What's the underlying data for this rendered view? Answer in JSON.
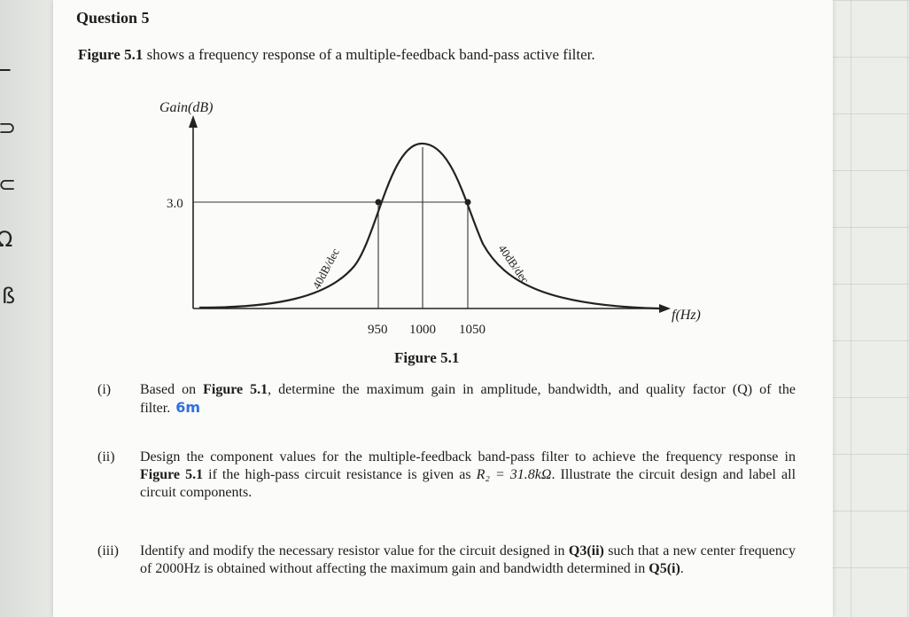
{
  "question": {
    "title": "Question 5",
    "intro_fig_ref": "Figure 5.1",
    "intro_rest": " shows a frequency response of a multiple-feedback band-pass active filter."
  },
  "figure": {
    "y_axis_label": "Gain(dB)",
    "x_axis_label": "f(Hz)",
    "gain_tick": "3.0",
    "freq_ticks": [
      "950",
      "1000",
      "1050"
    ],
    "left_slope_label": "40dB/dec",
    "right_slope_label": "40dB/dec",
    "caption": "Figure 5.1"
  },
  "parts": [
    {
      "number": "(i)",
      "text_a": "Based on ",
      "ref": "Figure 5.1",
      "text_b": ", determine the maximum gain in amplitude, bandwidth, and quality factor (Q) of the filter.",
      "marks": "6m"
    },
    {
      "number": "(ii)",
      "text_a": "Design the component values for the multiple-feedback band-pass filter to achieve the frequency response in ",
      "ref": "Figure 5.1",
      "text_b": " if the high-pass circuit resistance is given as ",
      "formula": "R₂ = 31.8kΩ",
      "text_c": ". Illustrate the circuit design and label all circuit components."
    },
    {
      "number": "(iii)",
      "text_a": "Identify and modify the necessary resistor value for the circuit designed in ",
      "ref": "Q3(ii)",
      "text_b": " such that a new center frequency of 2000Hz is obtained without affecting the maximum gain and bandwidth determined in ",
      "ref2": "Q5(i)",
      "text_c": "."
    }
  ],
  "colors": {
    "ink": "#1d1d1d",
    "marks_annotation": "#2f6fe0",
    "curve": "#222222",
    "grid": "#a0afb4"
  }
}
